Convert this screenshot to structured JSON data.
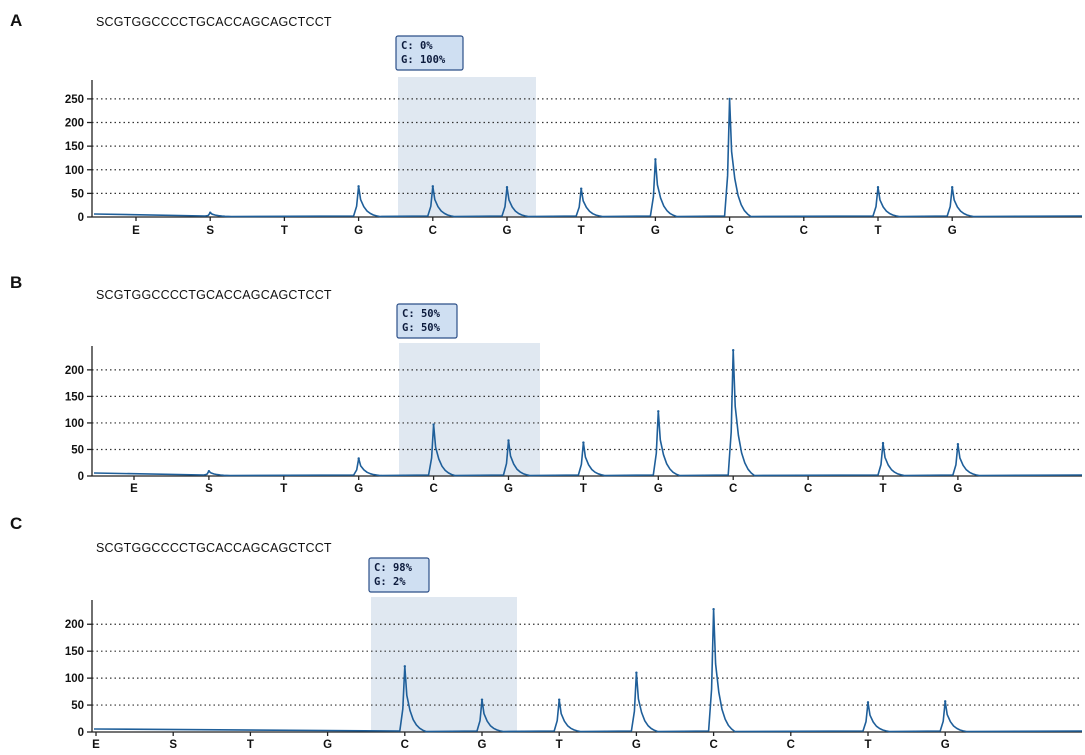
{
  "chart_data": [
    {
      "type": "line",
      "panel_label": "A",
      "sequence": "SCGTGGCCCCTGCACCAGCAGCTCCT",
      "dispensations": [
        "E",
        "S",
        "T",
        "G",
        "C",
        "G",
        "T",
        "G",
        "C",
        "C",
        "T",
        "G"
      ],
      "peak_heights": [
        0,
        9,
        0,
        65,
        65,
        63,
        60,
        122,
        250,
        0,
        63,
        63
      ],
      "highlight_dispensations": [
        "G",
        "C"
      ],
      "callout": {
        "line1": "C:  0%",
        "line2": "G: 100%"
      },
      "yticks": [
        0,
        50,
        100,
        150,
        200,
        250
      ],
      "ylim": [
        0,
        290
      ],
      "grid": true
    },
    {
      "type": "line",
      "panel_label": "B",
      "sequence": "SCGTGGCCCCTGCACCAGCAGCTCCT",
      "dispensations": [
        "E",
        "S",
        "T",
        "G",
        "C",
        "G",
        "T",
        "G",
        "C",
        "C",
        "T",
        "G"
      ],
      "peak_heights": [
        0,
        9,
        0,
        33,
        97,
        67,
        63,
        122,
        237,
        0,
        62,
        60
      ],
      "highlight_dispensations": [
        "G",
        "C"
      ],
      "callout": {
        "line1": "C: 50%",
        "line2": "G: 50%"
      },
      "yticks": [
        0,
        50,
        100,
        150,
        200
      ],
      "ylim": [
        0,
        245
      ],
      "grid": true
    },
    {
      "type": "line",
      "panel_label": "C",
      "sequence": "SCGTGGCCCCTGCACCAGCAGCTCCT",
      "dispensations": [
        "E",
        "S",
        "T",
        "G",
        "C",
        "G",
        "T",
        "G",
        "C",
        "C",
        "T",
        "G"
      ],
      "peak_heights": [
        0,
        0,
        0,
        0,
        122,
        60,
        60,
        110,
        228,
        0,
        55,
        57
      ],
      "highlight_dispensations": [
        "G",
        "C"
      ],
      "callout": {
        "line1": "C: 98%",
        "line2": "G:  2%"
      },
      "yticks": [
        0,
        50,
        100,
        150,
        200
      ],
      "ylim": [
        0,
        245
      ],
      "grid": true
    }
  ],
  "colors": {
    "trace": "#1f5f9a",
    "highlight": "#dbe4ef",
    "callout_fill": "#cfdff2",
    "callout_border": "#2c4f88"
  }
}
